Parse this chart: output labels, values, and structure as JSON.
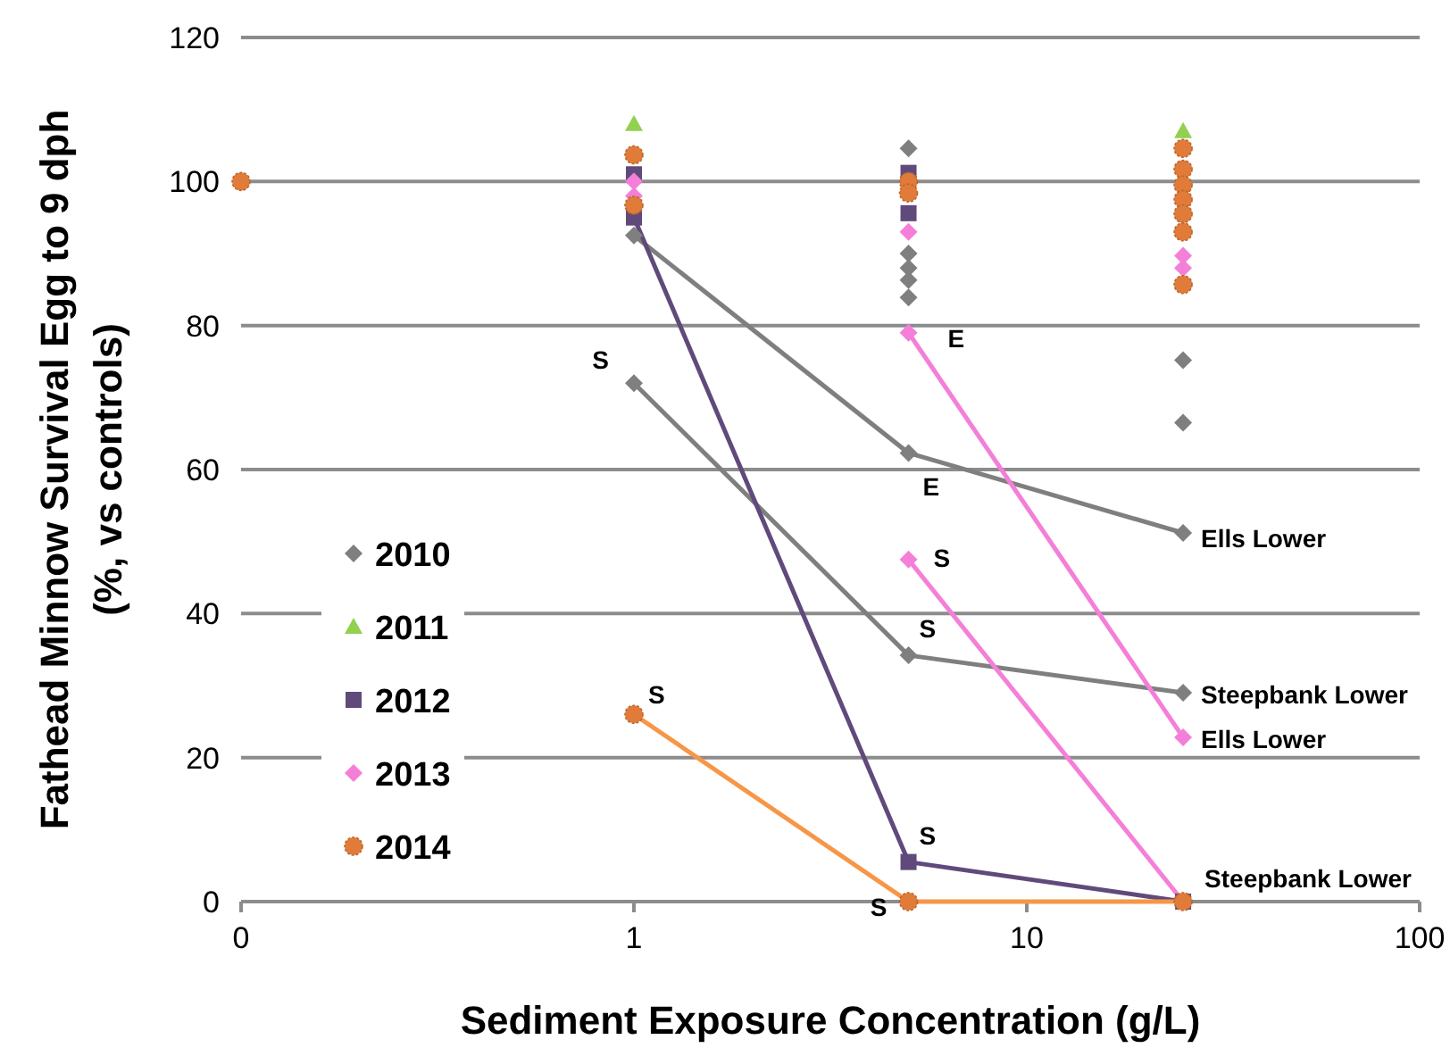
{
  "chart_data": {
    "type": "scatter",
    "xlabel": "Sediment Exposure Concentration (g/L)",
    "ylabel": "Fathead Minnow Survival Egg to 9 dph\n(%, vs controls)",
    "log": "x",
    "xlim": [
      0.1,
      100
    ],
    "xticks": [
      {
        "value": 0.1,
        "label": "0"
      },
      1,
      10,
      100
    ],
    "ylim": [
      0,
      120
    ],
    "yticks": [
      0,
      20,
      40,
      60,
      80,
      100,
      120
    ],
    "grid": "y",
    "legend": "left",
    "series": [
      {
        "type": "line",
        "color": "#7f7f7f",
        "marker": "none",
        "x": [
          1,
          5,
          25
        ],
        "values": [
          92.5,
          62.3,
          51.2
        ]
      },
      {
        "type": "line",
        "color": "#7f7f7f",
        "marker": "none",
        "x": [
          1,
          5,
          25
        ],
        "values": [
          72,
          34.2,
          29
        ]
      },
      {
        "type": "line",
        "color": "#604a7b",
        "marker": "none",
        "x": [
          1,
          5,
          25
        ],
        "values": [
          95,
          5.5,
          0
        ]
      },
      {
        "type": "line",
        "color": "#f47fd8",
        "marker": "none",
        "x": [
          5,
          25
        ],
        "values": [
          79,
          22.8
        ]
      },
      {
        "type": "line",
        "color": "#f47fd8",
        "marker": "none",
        "x": [
          5,
          25
        ],
        "values": [
          47.5,
          0
        ]
      },
      {
        "type": "line",
        "color": "#f79646",
        "marker": "none",
        "x": [
          1,
          5,
          25
        ],
        "values": [
          26,
          0,
          0
        ]
      },
      {
        "name": "2010",
        "color": "#7f7f7f",
        "marker": "diamond",
        "x": [
          1,
          1,
          5,
          5,
          5,
          5,
          5,
          5,
          5,
          25,
          25,
          25,
          25
        ],
        "values": [
          92.5,
          72,
          104.6,
          90,
          88,
          86.3,
          83.9,
          62.3,
          34.2,
          75.2,
          66.5,
          51.2,
          29
        ]
      },
      {
        "name": "2011",
        "color": "#92d050",
        "marker": "triangle",
        "x": [
          1,
          25
        ],
        "values": [
          108,
          107
        ]
      },
      {
        "name": "2012",
        "color": "#604a7b",
        "marker": "square",
        "x": [
          1,
          1,
          5,
          5,
          5,
          25
        ],
        "values": [
          95,
          101,
          101.2,
          95.6,
          5.5,
          0
        ]
      },
      {
        "name": "2013",
        "color": "#f47fd8",
        "marker": "diamond",
        "x": [
          1,
          1,
          5,
          5,
          5,
          25,
          25,
          25
        ],
        "values": [
          100,
          98,
          93,
          79,
          47.5,
          89.7,
          88,
          22.8
        ]
      },
      {
        "name": "2014",
        "color": "#e07b39",
        "marker": "circle",
        "x": [
          0.1,
          1,
          1,
          1,
          5,
          5,
          5,
          25,
          25,
          25,
          25,
          25,
          25,
          25,
          25
        ],
        "values": [
          100,
          103.7,
          96.7,
          26,
          100,
          98.4,
          0,
          104.6,
          101.7,
          99.5,
          97.5,
          95.5,
          93,
          85.7,
          0
        ]
      }
    ],
    "annotations": [
      {
        "text": "S",
        "x": 1,
        "y": 72
      },
      {
        "text": "S",
        "x": 1,
        "y": 26
      },
      {
        "text": "E",
        "x": 5,
        "y": 79
      },
      {
        "text": "E",
        "x": 5,
        "y": 62.3
      },
      {
        "text": "S",
        "x": 5,
        "y": 47.5
      },
      {
        "text": "S",
        "x": 5,
        "y": 34.2
      },
      {
        "text": "S",
        "x": 5,
        "y": 5.5
      },
      {
        "text": "S",
        "x": 5,
        "y": 0
      },
      {
        "text": "Ells Lower",
        "x": 25,
        "y": 51.2
      },
      {
        "text": "Steepbank Lower",
        "x": 25,
        "y": 29
      },
      {
        "text": "Ells Lower",
        "x": 25,
        "y": 22.8
      },
      {
        "text": "Steepbank Lower",
        "x": 25,
        "y": 0
      }
    ]
  }
}
